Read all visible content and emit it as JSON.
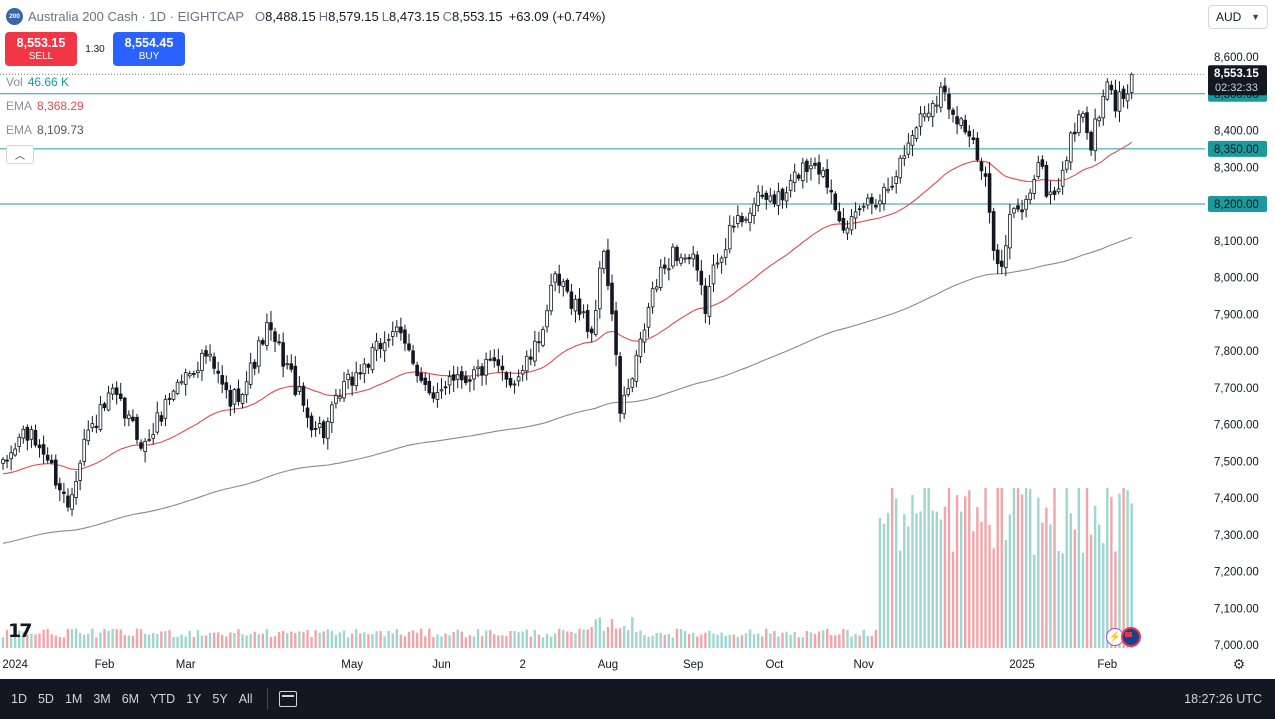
{
  "header": {
    "symbol_badge": "200",
    "title": "Australia 200 Cash · 1D · EIGHTCAP",
    "open_key": "O",
    "open": "8,488.15",
    "high_key": "H",
    "high": "8,579.15",
    "low_key": "L",
    "low": "8,473.15",
    "close_key": "C",
    "close": "8,553.15",
    "change": "+63.09 (+0.74%)"
  },
  "currency": {
    "label": "AUD"
  },
  "trade": {
    "sell_price": "8,553.15",
    "sell_label": "SELL",
    "spread": "1.30",
    "buy_price": "8,554.45",
    "buy_label": "BUY"
  },
  "indicators": {
    "vol_label": "Vol",
    "vol_value": "46.66 K",
    "ema1_label": "EMA",
    "ema1_value": "8,368.29",
    "ema2_label": "EMA",
    "ema2_value": "8,109.73"
  },
  "colors": {
    "up": "#131722",
    "down": "#131722",
    "ema_fast": "#e8474f",
    "ema_slow": "#8a8a8a",
    "hline": "#1aa3a3",
    "level_badge": "#1a9a9a",
    "vol_up": "#9fd6d0",
    "vol_down": "#f2a5a8",
    "price_badge": "#131722"
  },
  "toolbar": {
    "timeframes": [
      "1D",
      "5D",
      "1M",
      "3M",
      "6M",
      "YTD",
      "1Y",
      "5Y",
      "All"
    ],
    "clock": "18:27:26 UTC"
  },
  "chart_data": {
    "type": "candlestick",
    "title": "Australia 200 Cash · 1D · EIGHTCAP",
    "y_range": [
      6975,
      8660
    ],
    "y_ticks": [
      7000,
      7100,
      7200,
      7300,
      7400,
      7500,
      7600,
      7700,
      7800,
      7900,
      8000,
      8100,
      8200,
      8300,
      8400,
      8500,
      8600
    ],
    "y_tick_labels": [
      "7,000.00",
      "7,100.00",
      "7,200.00",
      "7,300.00",
      "7,400.00",
      "7,500.00",
      "7,600.00",
      "7,700.00",
      "7,800.00",
      "7,900.00",
      "8,000.00",
      "8,100.00",
      "8,200.00",
      "8,300.00",
      "8,400.00",
      "8,500.00",
      "8,600.00"
    ],
    "x_labels": [
      {
        "label": "2024",
        "bar": 3
      },
      {
        "label": "Feb",
        "bar": 25
      },
      {
        "label": "Mar",
        "bar": 45
      },
      {
        "label": "May",
        "bar": 86
      },
      {
        "label": "Jun",
        "bar": 108
      },
      {
        "label": "2",
        "bar": 128
      },
      {
        "label": "Aug",
        "bar": 149
      },
      {
        "label": "Sep",
        "bar": 170
      },
      {
        "label": "Oct",
        "bar": 190
      },
      {
        "label": "Nov",
        "bar": 212
      },
      {
        "label": "2025",
        "bar": 251
      },
      {
        "label": "Feb",
        "bar": 272
      }
    ],
    "key_points": [
      [
        0,
        7480
      ],
      [
        5,
        7580
      ],
      [
        10,
        7530
      ],
      [
        16,
        7380
      ],
      [
        20,
        7560
      ],
      [
        27,
        7680
      ],
      [
        35,
        7540
      ],
      [
        42,
        7700
      ],
      [
        50,
        7790
      ],
      [
        56,
        7660
      ],
      [
        60,
        7720
      ],
      [
        65,
        7860
      ],
      [
        70,
        7760
      ],
      [
        75,
        7620
      ],
      [
        79,
        7580
      ],
      [
        84,
        7700
      ],
      [
        90,
        7770
      ],
      [
        96,
        7860
      ],
      [
        101,
        7780
      ],
      [
        106,
        7650
      ],
      [
        110,
        7740
      ],
      [
        114,
        7730
      ],
      [
        120,
        7760
      ],
      [
        126,
        7720
      ],
      [
        131,
        7800
      ],
      [
        136,
        7990
      ],
      [
        141,
        7930
      ],
      [
        145,
        7850
      ],
      [
        148,
        8080
      ],
      [
        150,
        7900
      ],
      [
        152,
        7640
      ],
      [
        155,
        7720
      ],
      [
        160,
        7960
      ],
      [
        165,
        8070
      ],
      [
        170,
        8040
      ],
      [
        173,
        7920
      ],
      [
        176,
        8060
      ],
      [
        180,
        8140
      ],
      [
        184,
        8190
      ],
      [
        188,
        8220
      ],
      [
        192,
        8210
      ],
      [
        196,
        8290
      ],
      [
        200,
        8320
      ],
      [
        204,
        8240
      ],
      [
        208,
        8120
      ],
      [
        212,
        8200
      ],
      [
        216,
        8220
      ],
      [
        221,
        8310
      ],
      [
        225,
        8420
      ],
      [
        231,
        8510
      ],
      [
        234,
        8460
      ],
      [
        238,
        8390
      ],
      [
        242,
        8250
      ],
      [
        244,
        8100
      ],
      [
        246,
        8020
      ],
      [
        248,
        8160
      ],
      [
        252,
        8200
      ],
      [
        255,
        8320
      ],
      [
        257,
        8240
      ],
      [
        259,
        8220
      ],
      [
        262,
        8330
      ],
      [
        265,
        8450
      ],
      [
        268,
        8370
      ],
      [
        270,
        8440
      ],
      [
        272,
        8520
      ],
      [
        274,
        8470
      ],
      [
        276,
        8500
      ],
      [
        278,
        8553
      ]
    ],
    "ema_fast_last": 8368.29,
    "ema_slow_last": 8109.73,
    "horizontal_levels": [
      {
        "value": 8500,
        "label": "8,500.00"
      },
      {
        "value": 8350,
        "label": "8,350.00"
      },
      {
        "value": 8200,
        "label": "8,200.00"
      }
    ],
    "last_price": {
      "value": 8553.15,
      "label": "8,553.15",
      "countdown": "02:32:33"
    },
    "volume_regimes": [
      {
        "from": 0,
        "to": 215,
        "base": 0.1
      },
      {
        "from": 216,
        "to": 279,
        "base": 0.88
      }
    ],
    "grid": false,
    "legend": "top-left"
  }
}
